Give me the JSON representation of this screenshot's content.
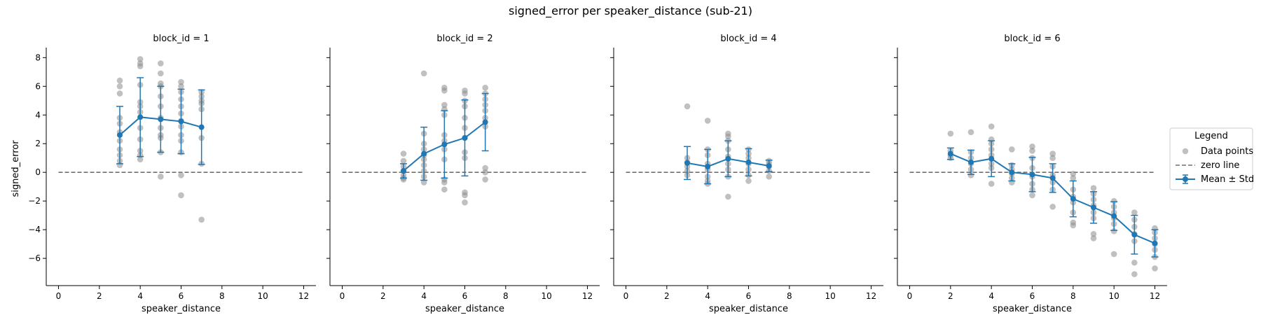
{
  "suptitle": "signed_error per speaker_distance (sub-21)",
  "ylabel": "signed_error",
  "legend": {
    "title": "Legend",
    "items": [
      {
        "label": "Data points",
        "kind": "points"
      },
      {
        "label": "zero line",
        "kind": "dashed"
      },
      {
        "label": "Mean ± Std",
        "kind": "errorbar"
      }
    ]
  },
  "colors": {
    "mean": "#1f77b4",
    "points": "#8c8c8c",
    "zero": "#707070"
  },
  "chart_data": [
    {
      "type": "scatter",
      "title": "block_id = 1",
      "xlabel": "speaker_distance",
      "ylabel": "signed_error",
      "xlim": [
        -0.6,
        12.6
      ],
      "ylim": [
        -7.9,
        8.7
      ],
      "xticks": [
        0,
        2,
        4,
        6,
        8,
        10,
        12
      ],
      "yticks": [
        -6,
        -4,
        -2,
        0,
        2,
        4,
        6,
        8
      ],
      "grid": false,
      "zero_line": 0,
      "mean_std": [
        {
          "x": 3,
          "mean": 2.6,
          "std": 2.0
        },
        {
          "x": 4,
          "mean": 3.85,
          "std": 2.75
        },
        {
          "x": 5,
          "mean": 3.7,
          "std": 2.3
        },
        {
          "x": 6,
          "mean": 3.55,
          "std": 2.25
        },
        {
          "x": 7,
          "mean": 3.15,
          "std": 2.6
        }
      ],
      "points": [
        [
          3,
          6.4
        ],
        [
          3,
          6.0
        ],
        [
          3,
          5.5
        ],
        [
          3,
          3.8
        ],
        [
          3,
          3.4
        ],
        [
          3,
          2.8
        ],
        [
          3,
          2.2
        ],
        [
          3,
          1.6
        ],
        [
          3,
          1.2
        ],
        [
          3,
          0.8
        ],
        [
          3,
          0.5
        ],
        [
          4,
          7.9
        ],
        [
          4,
          7.6
        ],
        [
          4,
          7.4
        ],
        [
          4,
          6.1
        ],
        [
          4,
          4.9
        ],
        [
          4,
          4.6
        ],
        [
          4,
          4.2
        ],
        [
          4,
          3.1
        ],
        [
          4,
          2.3
        ],
        [
          4,
          1.5
        ],
        [
          4,
          1.2
        ],
        [
          4,
          0.9
        ],
        [
          5,
          7.6
        ],
        [
          5,
          6.9
        ],
        [
          5,
          6.2
        ],
        [
          5,
          6.0
        ],
        [
          5,
          5.3
        ],
        [
          5,
          4.6
        ],
        [
          5,
          3.8
        ],
        [
          5,
          3.1
        ],
        [
          5,
          2.6
        ],
        [
          5,
          2.4
        ],
        [
          5,
          1.4
        ],
        [
          5,
          -0.3
        ],
        [
          6,
          6.3
        ],
        [
          6,
          6.0
        ],
        [
          6,
          5.6
        ],
        [
          6,
          5.1
        ],
        [
          6,
          4.6
        ],
        [
          6,
          4.1
        ],
        [
          6,
          3.6
        ],
        [
          6,
          3.2
        ],
        [
          6,
          2.6
        ],
        [
          6,
          2.2
        ],
        [
          6,
          1.4
        ],
        [
          6,
          -0.2
        ],
        [
          6,
          -1.6
        ],
        [
          7,
          5.6
        ],
        [
          7,
          5.3
        ],
        [
          7,
          5.0
        ],
        [
          7,
          4.8
        ],
        [
          7,
          4.4
        ],
        [
          7,
          2.4
        ],
        [
          7,
          0.6
        ],
        [
          7,
          -3.3
        ]
      ]
    },
    {
      "type": "scatter",
      "title": "block_id = 2",
      "xlabel": "speaker_distance",
      "ylabel": "signed_error",
      "xlim": [
        -0.6,
        12.6
      ],
      "ylim": [
        -7.9,
        8.7
      ],
      "xticks": [
        0,
        2,
        4,
        6,
        8,
        10,
        12
      ],
      "yticks": [
        -6,
        -4,
        -2,
        0,
        2,
        4,
        6,
        8
      ],
      "grid": false,
      "zero_line": 0,
      "mean_std": [
        {
          "x": 3,
          "mean": 0.1,
          "std": 0.5
        },
        {
          "x": 4,
          "mean": 1.3,
          "std": 1.85
        },
        {
          "x": 5,
          "mean": 1.95,
          "std": 2.35
        },
        {
          "x": 6,
          "mean": 2.4,
          "std": 2.65
        },
        {
          "x": 7,
          "mean": 3.5,
          "std": 2.0
        }
      ],
      "points": [
        [
          3,
          1.3
        ],
        [
          3,
          0.8
        ],
        [
          3,
          0.4
        ],
        [
          3,
          0.1
        ],
        [
          3,
          -0.2
        ],
        [
          3,
          -0.5
        ],
        [
          3,
          -0.4
        ],
        [
          4,
          6.9
        ],
        [
          4,
          2.7
        ],
        [
          4,
          2.0
        ],
        [
          4,
          1.6
        ],
        [
          4,
          1.2
        ],
        [
          4,
          0.9
        ],
        [
          4,
          0.5
        ],
        [
          4,
          0.1
        ],
        [
          4,
          -0.3
        ],
        [
          4,
          -0.7
        ],
        [
          5,
          5.9
        ],
        [
          5,
          5.7
        ],
        [
          5,
          4.7
        ],
        [
          5,
          4.4
        ],
        [
          5,
          4.0
        ],
        [
          5,
          2.6
        ],
        [
          5,
          2.2
        ],
        [
          5,
          1.6
        ],
        [
          5,
          0.9
        ],
        [
          5,
          -0.5
        ],
        [
          5,
          -0.7
        ],
        [
          5,
          -1.2
        ],
        [
          6,
          5.7
        ],
        [
          6,
          5.5
        ],
        [
          6,
          5.0
        ],
        [
          6,
          4.6
        ],
        [
          6,
          3.8
        ],
        [
          6,
          3.1
        ],
        [
          6,
          2.4
        ],
        [
          6,
          1.4
        ],
        [
          6,
          1.0
        ],
        [
          6,
          -1.4
        ],
        [
          6,
          -1.6
        ],
        [
          6,
          -2.1
        ],
        [
          7,
          5.9
        ],
        [
          7,
          5.5
        ],
        [
          7,
          5.1
        ],
        [
          7,
          4.7
        ],
        [
          7,
          4.3
        ],
        [
          7,
          3.8
        ],
        [
          7,
          3.2
        ],
        [
          7,
          0.3
        ],
        [
          7,
          0.0
        ],
        [
          7,
          -0.5
        ]
      ]
    },
    {
      "type": "scatter",
      "title": "block_id = 4",
      "xlabel": "speaker_distance",
      "ylabel": "signed_error",
      "xlim": [
        -0.6,
        12.6
      ],
      "ylim": [
        -7.9,
        8.7
      ],
      "xticks": [
        0,
        2,
        4,
        6,
        8,
        10,
        12
      ],
      "yticks": [
        -6,
        -4,
        -2,
        0,
        2,
        4,
        6,
        8
      ],
      "grid": false,
      "zero_line": 0,
      "mean_std": [
        {
          "x": 3,
          "mean": 0.65,
          "std": 1.15
        },
        {
          "x": 4,
          "mean": 0.4,
          "std": 1.2
        },
        {
          "x": 5,
          "mean": 0.95,
          "std": 1.25
        },
        {
          "x": 6,
          "mean": 0.7,
          "std": 0.95
        },
        {
          "x": 7,
          "mean": 0.45,
          "std": 0.4
        }
      ],
      "points": [
        [
          3,
          4.6
        ],
        [
          3,
          1.0
        ],
        [
          3,
          0.7
        ],
        [
          3,
          0.4
        ],
        [
          3,
          0.1
        ],
        [
          3,
          -0.2
        ],
        [
          4,
          3.6
        ],
        [
          4,
          1.6
        ],
        [
          4,
          1.2
        ],
        [
          4,
          0.6
        ],
        [
          4,
          0.2
        ],
        [
          4,
          -0.3
        ],
        [
          4,
          -0.6
        ],
        [
          4,
          -0.8
        ],
        [
          5,
          2.7
        ],
        [
          5,
          2.5
        ],
        [
          5,
          2.2
        ],
        [
          5,
          1.6
        ],
        [
          5,
          1.1
        ],
        [
          5,
          0.6
        ],
        [
          5,
          0.2
        ],
        [
          5,
          -0.3
        ],
        [
          5,
          -1.7
        ],
        [
          6,
          1.6
        ],
        [
          6,
          1.3
        ],
        [
          6,
          1.0
        ],
        [
          6,
          0.6
        ],
        [
          6,
          0.2
        ],
        [
          6,
          -0.2
        ],
        [
          6,
          -0.6
        ],
        [
          7,
          0.8
        ],
        [
          7,
          0.6
        ],
        [
          7,
          0.4
        ],
        [
          7,
          0.1
        ],
        [
          7,
          -0.3
        ]
      ]
    },
    {
      "type": "scatter",
      "title": "block_id = 6",
      "xlabel": "speaker_distance",
      "ylabel": "signed_error",
      "xlim": [
        -0.6,
        12.6
      ],
      "ylim": [
        -7.9,
        8.7
      ],
      "xticks": [
        0,
        2,
        4,
        6,
        8,
        10,
        12
      ],
      "yticks": [
        -6,
        -4,
        -2,
        0,
        2,
        4,
        6,
        8
      ],
      "grid": false,
      "zero_line": 0,
      "mean_std": [
        {
          "x": 2,
          "mean": 1.3,
          "std": 0.4
        },
        {
          "x": 3,
          "mean": 0.7,
          "std": 0.85
        },
        {
          "x": 4,
          "mean": 0.95,
          "std": 1.25
        },
        {
          "x": 5,
          "mean": 0.0,
          "std": 0.6
        },
        {
          "x": 6,
          "mean": -0.15,
          "std": 1.2
        },
        {
          "x": 7,
          "mean": -0.4,
          "std": 1.0
        },
        {
          "x": 8,
          "mean": -1.85,
          "std": 1.25
        },
        {
          "x": 9,
          "mean": -2.45,
          "std": 1.1
        },
        {
          "x": 10,
          "mean": -3.05,
          "std": 1.0
        },
        {
          "x": 11,
          "mean": -4.35,
          "std": 1.35
        },
        {
          "x": 12,
          "mean": -4.95,
          "std": 0.95
        }
      ],
      "points": [
        [
          2,
          2.7
        ],
        [
          2,
          1.5
        ],
        [
          2,
          1.2
        ],
        [
          2,
          1.0
        ],
        [
          3,
          2.8
        ],
        [
          3,
          1.4
        ],
        [
          3,
          1.0
        ],
        [
          3,
          0.6
        ],
        [
          3,
          0.2
        ],
        [
          3,
          -0.2
        ],
        [
          4,
          3.2
        ],
        [
          4,
          2.3
        ],
        [
          4,
          2.0
        ],
        [
          4,
          1.6
        ],
        [
          4,
          1.2
        ],
        [
          4,
          0.6
        ],
        [
          4,
          0.3
        ],
        [
          4,
          -0.8
        ],
        [
          5,
          1.6
        ],
        [
          5,
          0.5
        ],
        [
          5,
          0.2
        ],
        [
          5,
          -0.1
        ],
        [
          5,
          -0.4
        ],
        [
          5,
          -0.7
        ],
        [
          6,
          1.8
        ],
        [
          6,
          1.5
        ],
        [
          6,
          1.0
        ],
        [
          6,
          0.3
        ],
        [
          6,
          -0.3
        ],
        [
          6,
          -0.8
        ],
        [
          6,
          -1.2
        ],
        [
          6,
          -1.6
        ],
        [
          7,
          1.3
        ],
        [
          7,
          1.0
        ],
        [
          7,
          0.4
        ],
        [
          7,
          -0.2
        ],
        [
          7,
          -0.7
        ],
        [
          7,
          -1.2
        ],
        [
          7,
          -2.4
        ],
        [
          8,
          -0.1
        ],
        [
          8,
          -0.4
        ],
        [
          8,
          -1.2
        ],
        [
          8,
          -1.7
        ],
        [
          8,
          -2.1
        ],
        [
          8,
          -2.8
        ],
        [
          8,
          -3.5
        ],
        [
          8,
          -3.7
        ],
        [
          9,
          -1.1
        ],
        [
          9,
          -1.5
        ],
        [
          9,
          -1.9
        ],
        [
          9,
          -2.3
        ],
        [
          9,
          -2.8
        ],
        [
          9,
          -3.2
        ],
        [
          9,
          -4.3
        ],
        [
          9,
          -4.6
        ],
        [
          10,
          -2.0
        ],
        [
          10,
          -2.4
        ],
        [
          10,
          -2.8
        ],
        [
          10,
          -3.2
        ],
        [
          10,
          -3.6
        ],
        [
          10,
          -4.1
        ],
        [
          10,
          -5.7
        ],
        [
          11,
          -2.8
        ],
        [
          11,
          -3.3
        ],
        [
          11,
          -3.8
        ],
        [
          11,
          -4.3
        ],
        [
          11,
          -4.8
        ],
        [
          11,
          -6.3
        ],
        [
          11,
          -7.1
        ],
        [
          12,
          -3.9
        ],
        [
          12,
          -4.2
        ],
        [
          12,
          -4.6
        ],
        [
          12,
          -5.0
        ],
        [
          12,
          -5.4
        ],
        [
          12,
          -5.9
        ],
        [
          12,
          -6.7
        ]
      ]
    }
  ]
}
